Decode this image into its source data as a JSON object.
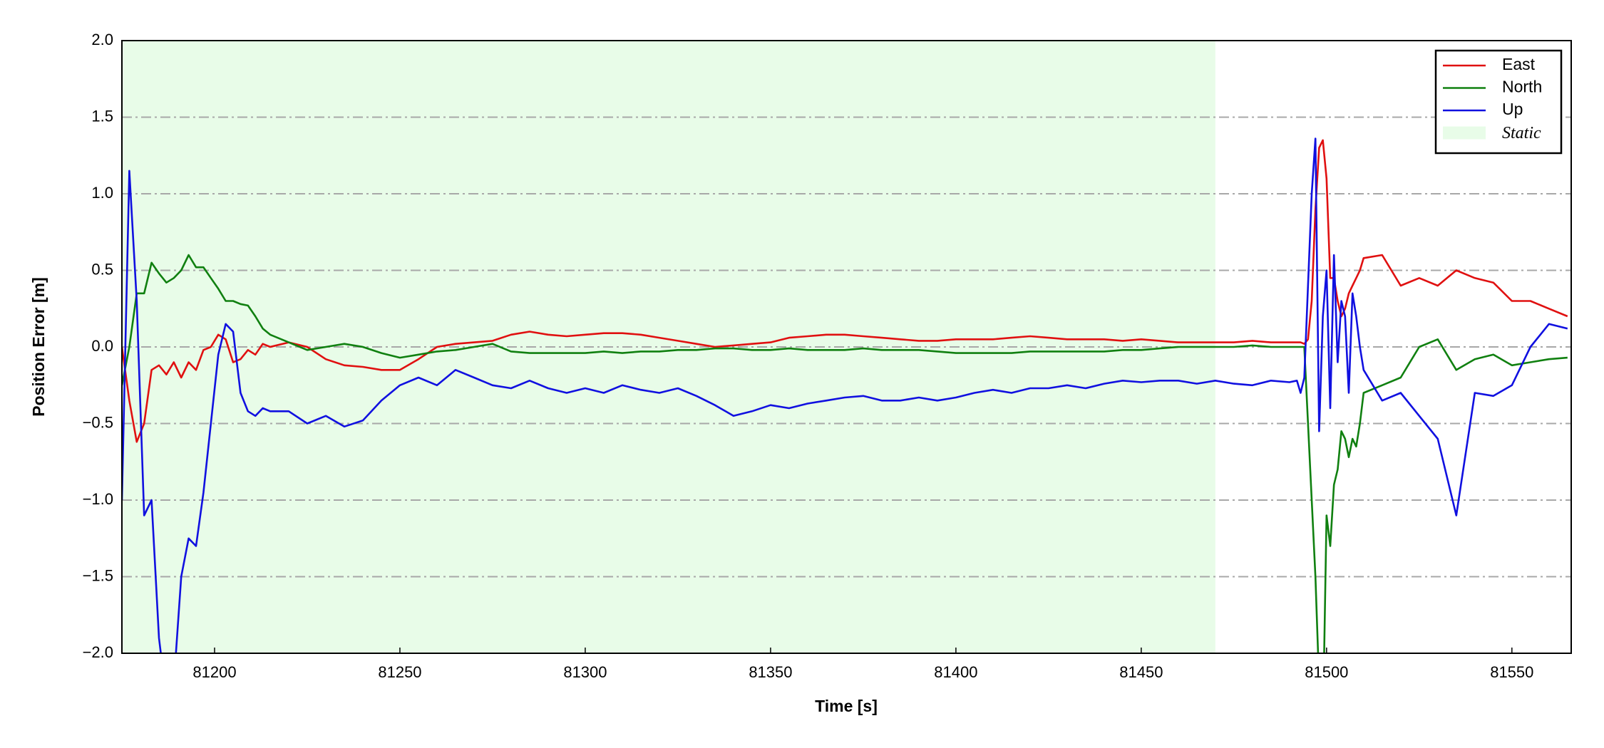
{
  "chart_data": {
    "type": "line",
    "xlabel": "Time [s]",
    "ylabel": "Position Error [m]",
    "xlim": [
      81175,
      81566
    ],
    "ylim": [
      -2,
      2
    ],
    "xticks": [
      81200,
      81250,
      81300,
      81350,
      81400,
      81450,
      81500,
      81550
    ],
    "yticks": [
      {
        "value": -2,
        "label": "−2.0"
      },
      {
        "value": -1.5,
        "label": "−1.5"
      },
      {
        "value": -1,
        "label": "−1.0"
      },
      {
        "value": -0.5,
        "label": "−0.5"
      },
      {
        "value": 0,
        "label": "0.0"
      },
      {
        "value": 0.5,
        "label": "0.5"
      },
      {
        "value": 1,
        "label": "1.0"
      },
      {
        "value": 1.5,
        "label": "1.5"
      },
      {
        "value": 2,
        "label": "2.0"
      }
    ],
    "grid": true,
    "legend": "upper right",
    "shaded_regions": [
      {
        "name": "Static",
        "start": 81175,
        "end": 81470,
        "color": "#e8fce8"
      }
    ],
    "x": [
      81175,
      81177,
      81179,
      81181,
      81183,
      81185,
      81187,
      81189,
      81191,
      81193,
      81195,
      81197,
      81199,
      81201,
      81203,
      81205,
      81207,
      81209,
      81211,
      81213,
      81215,
      81220,
      81225,
      81230,
      81235,
      81240,
      81245,
      81250,
      81255,
      81260,
      81265,
      81270,
      81275,
      81280,
      81285,
      81290,
      81295,
      81300,
      81305,
      81310,
      81315,
      81320,
      81325,
      81330,
      81335,
      81340,
      81345,
      81350,
      81355,
      81360,
      81365,
      81370,
      81375,
      81380,
      81385,
      81390,
      81395,
      81400,
      81405,
      81410,
      81415,
      81420,
      81425,
      81430,
      81435,
      81440,
      81445,
      81450,
      81455,
      81460,
      81465,
      81470,
      81475,
      81480,
      81485,
      81490,
      81492,
      81493,
      81494,
      81495,
      81496,
      81497,
      81498,
      81499,
      81500,
      81501,
      81502,
      81503,
      81504,
      81505,
      81506,
      81507,
      81508,
      81509,
      81510,
      81515,
      81520,
      81525,
      81530,
      81535,
      81540,
      81545,
      81550,
      81555,
      81560,
      81565
    ],
    "series": [
      {
        "name": "East",
        "color": "#e01010",
        "values": [
          0.0,
          -0.35,
          -0.62,
          -0.5,
          -0.15,
          -0.12,
          -0.18,
          -0.1,
          -0.2,
          -0.1,
          -0.15,
          -0.02,
          0.0,
          0.08,
          0.05,
          -0.1,
          -0.08,
          -0.02,
          -0.05,
          0.02,
          0.0,
          0.03,
          0.0,
          -0.08,
          -0.12,
          -0.13,
          -0.15,
          -0.15,
          -0.08,
          0.0,
          0.02,
          0.03,
          0.04,
          0.08,
          0.1,
          0.08,
          0.07,
          0.08,
          0.09,
          0.09,
          0.08,
          0.06,
          0.04,
          0.02,
          0.0,
          0.01,
          0.02,
          0.03,
          0.06,
          0.07,
          0.08,
          0.08,
          0.07,
          0.06,
          0.05,
          0.04,
          0.04,
          0.05,
          0.05,
          0.05,
          0.06,
          0.07,
          0.06,
          0.05,
          0.05,
          0.05,
          0.04,
          0.05,
          0.04,
          0.03,
          0.03,
          0.03,
          0.03,
          0.04,
          0.03,
          0.03,
          0.03,
          0.03,
          0.02,
          0.05,
          0.3,
          0.9,
          1.3,
          1.35,
          1.1,
          0.45,
          0.45,
          0.3,
          0.2,
          0.25,
          0.35,
          0.4,
          0.45,
          0.5,
          0.58,
          0.6,
          0.4,
          0.45,
          0.4,
          0.5,
          0.45,
          0.42,
          0.3,
          0.3,
          0.25,
          0.2
        ]
      },
      {
        "name": "North",
        "color": "#108010",
        "values": [
          -0.25,
          0.0,
          0.35,
          0.35,
          0.55,
          0.48,
          0.42,
          0.45,
          0.5,
          0.6,
          0.52,
          0.52,
          0.45,
          0.38,
          0.3,
          0.3,
          0.28,
          0.27,
          0.2,
          0.12,
          0.08,
          0.03,
          -0.02,
          0.0,
          0.02,
          0.0,
          -0.04,
          -0.07,
          -0.05,
          -0.03,
          -0.02,
          0.0,
          0.02,
          -0.03,
          -0.04,
          -0.04,
          -0.04,
          -0.04,
          -0.03,
          -0.04,
          -0.03,
          -0.03,
          -0.02,
          -0.02,
          -0.01,
          -0.01,
          -0.02,
          -0.02,
          -0.01,
          -0.02,
          -0.02,
          -0.02,
          -0.01,
          -0.02,
          -0.02,
          -0.02,
          -0.03,
          -0.04,
          -0.04,
          -0.04,
          -0.04,
          -0.03,
          -0.03,
          -0.03,
          -0.03,
          -0.03,
          -0.02,
          -0.02,
          -0.01,
          0.0,
          0.0,
          0.0,
          0.0,
          0.01,
          0.0,
          0.0,
          0.0,
          0.0,
          0.0,
          -0.5,
          -1.0,
          -1.5,
          -2.2,
          -2.5,
          -1.1,
          -1.3,
          -0.9,
          -0.8,
          -0.55,
          -0.6,
          -0.72,
          -0.6,
          -0.65,
          -0.5,
          -0.3,
          -0.25,
          -0.2,
          0.0,
          0.05,
          -0.15,
          -0.08,
          -0.05,
          -0.12,
          -0.1,
          -0.08,
          -0.07
        ]
      },
      {
        "name": "Up",
        "color": "#1010e0",
        "values": [
          -1.0,
          1.15,
          0.3,
          -1.1,
          -1.0,
          -1.9,
          -2.3,
          -2.2,
          -1.5,
          -1.25,
          -1.3,
          -0.95,
          -0.5,
          -0.05,
          0.15,
          0.1,
          -0.3,
          -0.42,
          -0.45,
          -0.4,
          -0.42,
          -0.42,
          -0.5,
          -0.45,
          -0.52,
          -0.48,
          -0.35,
          -0.25,
          -0.2,
          -0.25,
          -0.15,
          -0.2,
          -0.25,
          -0.27,
          -0.22,
          -0.27,
          -0.3,
          -0.27,
          -0.3,
          -0.25,
          -0.28,
          -0.3,
          -0.27,
          -0.32,
          -0.38,
          -0.45,
          -0.42,
          -0.38,
          -0.4,
          -0.37,
          -0.35,
          -0.33,
          -0.32,
          -0.35,
          -0.35,
          -0.33,
          -0.35,
          -0.33,
          -0.3,
          -0.28,
          -0.3,
          -0.27,
          -0.27,
          -0.25,
          -0.27,
          -0.24,
          -0.22,
          -0.23,
          -0.22,
          -0.22,
          -0.24,
          -0.22,
          -0.24,
          -0.25,
          -0.22,
          -0.23,
          -0.22,
          -0.3,
          -0.2,
          0.4,
          1.0,
          1.36,
          -0.55,
          0.2,
          0.5,
          -0.4,
          0.6,
          -0.1,
          0.3,
          0.2,
          -0.3,
          0.35,
          0.2,
          0.0,
          -0.15,
          -0.35,
          -0.3,
          -0.45,
          -0.6,
          -1.1,
          -0.3,
          -0.32,
          -0.25,
          0.0,
          0.15,
          0.12
        ]
      }
    ]
  }
}
